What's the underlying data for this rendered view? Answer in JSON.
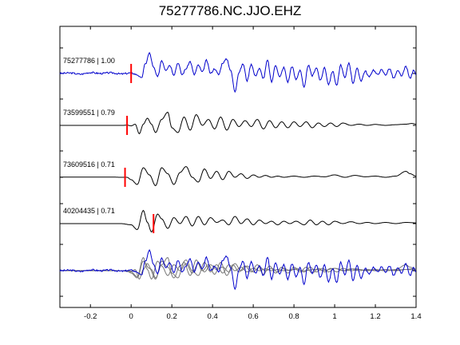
{
  "chart_data": {
    "type": "line",
    "title": "75277786.NC.JJO.EHZ",
    "xlabel": "",
    "ylabel": "",
    "xlim": [
      -0.35,
      1.4
    ],
    "x_ticks": [
      -0.2,
      0,
      0.2,
      0.4,
      0.6,
      0.8,
      1,
      1.2,
      1.4
    ],
    "x_tick_labels": [
      "-0.2",
      "0",
      "0.2",
      "0.4",
      "0.6",
      "0.8",
      "1",
      "1.2",
      "1.4"
    ],
    "grid": false,
    "colors": {
      "reference": "#0000cc",
      "trace": "#000000",
      "pick": "#ff0000",
      "overlay": "#777777"
    },
    "traces": [
      {
        "label": "75277786 | 1.00",
        "pick_time": 0.0,
        "color": "#0000cc",
        "noise": 0.07,
        "noise_seed": 3,
        "samples": [
          [
            -0.35,
            0
          ],
          [
            -0.3,
            0.02
          ],
          [
            -0.25,
            -0.03
          ],
          [
            -0.2,
            0.04
          ],
          [
            -0.15,
            0
          ],
          [
            -0.1,
            0.03
          ],
          [
            -0.05,
            -0.02
          ],
          [
            0.0,
            0.02
          ],
          [
            0.03,
            -0.05
          ],
          [
            0.05,
            -0.2
          ],
          [
            0.07,
            0.4
          ],
          [
            0.09,
            0.85
          ],
          [
            0.11,
            0.25
          ],
          [
            0.13,
            -0.15
          ],
          [
            0.15,
            0.55
          ],
          [
            0.17,
            0.15
          ],
          [
            0.19,
            0.35
          ],
          [
            0.21,
            -0.05
          ],
          [
            0.23,
            0.45
          ],
          [
            0.25,
            -0.05
          ],
          [
            0.27,
            0.2
          ],
          [
            0.29,
            0.5
          ],
          [
            0.31,
            -0.05
          ],
          [
            0.33,
            0.35
          ],
          [
            0.35,
            0.05
          ],
          [
            0.37,
            0.55
          ],
          [
            0.39,
            0.0
          ],
          [
            0.41,
            0.2
          ],
          [
            0.43,
            -0.05
          ],
          [
            0.45,
            0.45
          ],
          [
            0.47,
            0.6
          ],
          [
            0.49,
            0.1
          ],
          [
            0.51,
            -0.75
          ],
          [
            0.53,
            0.05
          ],
          [
            0.55,
            0.4
          ],
          [
            0.57,
            -0.3
          ],
          [
            0.59,
            0.4
          ],
          [
            0.61,
            -0.1
          ],
          [
            0.63,
            0.2
          ],
          [
            0.65,
            -0.2
          ],
          [
            0.67,
            0.55
          ],
          [
            0.69,
            -0.35
          ],
          [
            0.71,
            0.35
          ],
          [
            0.73,
            -0.15
          ],
          [
            0.75,
            0.25
          ],
          [
            0.77,
            -0.35
          ],
          [
            0.79,
            0.3
          ],
          [
            0.81,
            -0.25
          ],
          [
            0.83,
            0.15
          ],
          [
            0.85,
            -0.6
          ],
          [
            0.87,
            0.35
          ],
          [
            0.89,
            -0.1
          ],
          [
            0.91,
            0.25
          ],
          [
            0.93,
            -0.3
          ],
          [
            0.95,
            0.25
          ],
          [
            0.97,
            -0.45
          ],
          [
            0.99,
            0.1
          ],
          [
            1.01,
            -0.5
          ],
          [
            1.03,
            0.35
          ],
          [
            1.05,
            -0.2
          ],
          [
            1.07,
            0.45
          ],
          [
            1.09,
            -0.4
          ],
          [
            1.11,
            0.2
          ],
          [
            1.13,
            -0.3
          ],
          [
            1.15,
            0.1
          ],
          [
            1.17,
            -0.15
          ],
          [
            1.19,
            0.15
          ],
          [
            1.21,
            -0.05
          ],
          [
            1.23,
            0.15
          ],
          [
            1.25,
            -0.05
          ],
          [
            1.27,
            0.2
          ],
          [
            1.29,
            -0.2
          ],
          [
            1.31,
            0.1
          ],
          [
            1.33,
            -0.1
          ],
          [
            1.35,
            0.3
          ],
          [
            1.37,
            -0.2
          ],
          [
            1.39,
            0.15
          ],
          [
            1.4,
            -0.05
          ]
        ]
      },
      {
        "label": "73599551 | 0.79",
        "pick_time": -0.02,
        "color": "#000000",
        "noise": 0.0,
        "noise_seed": 5,
        "samples": [
          [
            -0.35,
            0
          ],
          [
            -0.04,
            0
          ],
          [
            -0.02,
            0.01
          ],
          [
            0.0,
            -0.02
          ],
          [
            0.02,
            0.05
          ],
          [
            0.04,
            -0.35
          ],
          [
            0.06,
            0.05
          ],
          [
            0.08,
            0.3
          ],
          [
            0.1,
            0.05
          ],
          [
            0.12,
            -0.3
          ],
          [
            0.15,
            0.25
          ],
          [
            0.18,
            0.55
          ],
          [
            0.2,
            -0.1
          ],
          [
            0.23,
            -0.3
          ],
          [
            0.26,
            0.35
          ],
          [
            0.29,
            -0.2
          ],
          [
            0.32,
            0.45
          ],
          [
            0.35,
            0.0
          ],
          [
            0.38,
            0.25
          ],
          [
            0.41,
            -0.15
          ],
          [
            0.44,
            0.35
          ],
          [
            0.47,
            -0.2
          ],
          [
            0.5,
            0.25
          ],
          [
            0.53,
            -0.05
          ],
          [
            0.56,
            0.2
          ],
          [
            0.59,
            -0.05
          ],
          [
            0.62,
            0.25
          ],
          [
            0.65,
            -0.15
          ],
          [
            0.68,
            0.2
          ],
          [
            0.71,
            -0.1
          ],
          [
            0.74,
            0.15
          ],
          [
            0.77,
            -0.1
          ],
          [
            0.8,
            0.15
          ],
          [
            0.83,
            -0.05
          ],
          [
            0.86,
            0.15
          ],
          [
            0.89,
            -0.1
          ],
          [
            0.92,
            0.1
          ],
          [
            0.95,
            -0.05
          ],
          [
            0.98,
            0.1
          ],
          [
            1.01,
            -0.05
          ],
          [
            1.04,
            0.1
          ],
          [
            1.08,
            0.0
          ],
          [
            1.12,
            0.05
          ],
          [
            1.16,
            0.0
          ],
          [
            1.2,
            0.04
          ],
          [
            1.25,
            0.0
          ],
          [
            1.3,
            0.03
          ],
          [
            1.35,
            0.05
          ],
          [
            1.38,
            0.08
          ],
          [
            1.4,
            0.05
          ]
        ]
      },
      {
        "label": "73609516 | 0.71",
        "pick_time": -0.03,
        "color": "#000000",
        "noise": 0.0,
        "noise_seed": 7,
        "samples": [
          [
            -0.35,
            0.01
          ],
          [
            -0.2,
            0.01
          ],
          [
            -0.1,
            0.01
          ],
          [
            -0.05,
            0.0
          ],
          [
            -0.02,
            0.0
          ],
          [
            0.0,
            -0.1
          ],
          [
            0.03,
            -0.3
          ],
          [
            0.06,
            0.4
          ],
          [
            0.09,
            0.1
          ],
          [
            0.12,
            -0.35
          ],
          [
            0.15,
            0.4
          ],
          [
            0.18,
            0.15
          ],
          [
            0.21,
            -0.3
          ],
          [
            0.24,
            0.2
          ],
          [
            0.27,
            0.45
          ],
          [
            0.3,
            0.0
          ],
          [
            0.33,
            -0.2
          ],
          [
            0.36,
            0.35
          ],
          [
            0.39,
            -0.05
          ],
          [
            0.42,
            0.25
          ],
          [
            0.45,
            -0.1
          ],
          [
            0.48,
            0.25
          ],
          [
            0.51,
            0.0
          ],
          [
            0.54,
            0.15
          ],
          [
            0.57,
            -0.05
          ],
          [
            0.6,
            0.1
          ],
          [
            0.63,
            0.0
          ],
          [
            0.66,
            0.08
          ],
          [
            0.69,
            0.0
          ],
          [
            0.72,
            0.05
          ],
          [
            0.75,
            0.0
          ],
          [
            0.8,
            0.05
          ],
          [
            0.85,
            0.0
          ],
          [
            0.9,
            0.05
          ],
          [
            0.95,
            0.02
          ],
          [
            1.0,
            0.1
          ],
          [
            1.05,
            0.0
          ],
          [
            1.1,
            0.08
          ],
          [
            1.15,
            0.02
          ],
          [
            1.2,
            0.05
          ],
          [
            1.25,
            0.0
          ],
          [
            1.3,
            0.05
          ],
          [
            1.35,
            0.25
          ],
          [
            1.37,
            0.15
          ],
          [
            1.4,
            0.05
          ]
        ]
      },
      {
        "label": "40204435 | 0.71",
        "pick_time": 0.11,
        "color": "#000000",
        "noise": 0.0,
        "noise_seed": 9,
        "samples": [
          [
            -0.35,
            0.0
          ],
          [
            -0.2,
            0.0
          ],
          [
            -0.05,
            0.0
          ],
          [
            0.0,
            -0.05
          ],
          [
            0.03,
            -0.25
          ],
          [
            0.06,
            0.55
          ],
          [
            0.08,
            0.05
          ],
          [
            0.1,
            -0.35
          ],
          [
            0.13,
            0.4
          ],
          [
            0.15,
            0.2
          ],
          [
            0.18,
            -0.2
          ],
          [
            0.21,
            0.25
          ],
          [
            0.24,
            0.0
          ],
          [
            0.27,
            0.3
          ],
          [
            0.3,
            -0.1
          ],
          [
            0.33,
            0.3
          ],
          [
            0.36,
            -0.05
          ],
          [
            0.39,
            0.25
          ],
          [
            0.42,
            0.05
          ],
          [
            0.45,
            0.15
          ],
          [
            0.48,
            -0.05
          ],
          [
            0.51,
            0.3
          ],
          [
            0.54,
            0.0
          ],
          [
            0.57,
            0.2
          ],
          [
            0.6,
            -0.05
          ],
          [
            0.63,
            0.15
          ],
          [
            0.66,
            0.0
          ],
          [
            0.69,
            0.1
          ],
          [
            0.72,
            -0.05
          ],
          [
            0.75,
            0.1
          ],
          [
            0.78,
            0.0
          ],
          [
            0.81,
            0.1
          ],
          [
            0.85,
            -0.05
          ],
          [
            0.88,
            0.15
          ],
          [
            0.91,
            -0.05
          ],
          [
            0.94,
            0.1
          ],
          [
            0.97,
            -0.05
          ],
          [
            1.0,
            0.1
          ],
          [
            1.04,
            0.0
          ],
          [
            1.08,
            0.08
          ],
          [
            1.12,
            0.0
          ],
          [
            1.16,
            0.05
          ],
          [
            1.2,
            0.0
          ],
          [
            1.25,
            0.05
          ],
          [
            1.3,
            0.0
          ],
          [
            1.35,
            0.05
          ],
          [
            1.4,
            0.03
          ]
        ]
      }
    ]
  }
}
